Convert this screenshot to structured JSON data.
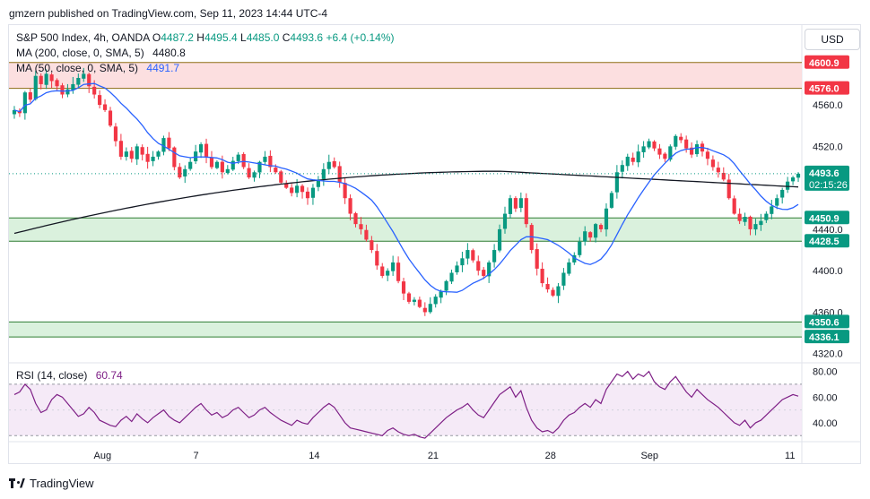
{
  "header": {
    "published": "gmzern published on TradingView.com, Sep 11, 2023 14:44 UTC-4"
  },
  "legend": {
    "title": "S&P 500 Index, 4h, OANDA",
    "open_label": "O",
    "open": "4487.2",
    "high_label": "H",
    "high": "4495.4",
    "low_label": "L",
    "low": "4485.0",
    "close_label": "C",
    "close": "4493.6",
    "change": "+6.4 (+0.14%)",
    "ma200_label": "MA (200, close, 0, SMA, 5)",
    "ma200_value": "4480.8",
    "ma50_label": "MA (50, close, 0, SMA, 5)",
    "ma50_value": "4491.7",
    "rsi_label": "RSI (14, close)",
    "rsi_value": "60.74"
  },
  "currency_button": "USD",
  "footer": {
    "brand": "TradingView"
  },
  "colors": {
    "up": "#089981",
    "down": "#f23645",
    "ma200": "#131722",
    "ma50": "#2962ff",
    "rsi": "#7e1f86",
    "resistance_zone": "#fbd9da",
    "support_zone": "#d4efd7"
  },
  "chart_data": [
    {
      "type": "candlestick",
      "title": "S&P 500 Index, 4h, OANDA",
      "ylim": [
        4312,
        4637
      ],
      "y_ticks": [
        "4560.0",
        "4520.0",
        "4440.0",
        "4400.0",
        "4360.0",
        "4320.0"
      ],
      "x_ticks": [
        "Aug",
        "7",
        "14",
        "21",
        "28",
        "Sep",
        "11"
      ],
      "price_labels": [
        {
          "text": "4600.9",
          "value": 4600.9,
          "color": "#f23645"
        },
        {
          "text": "4576.0",
          "value": 4576.0,
          "color": "#f23645"
        },
        {
          "text": "4493.6",
          "value": 4493.6,
          "color": "#089981",
          "countdown": "02:15:26"
        },
        {
          "text": "4450.9",
          "value": 4450.9,
          "color": "#089981"
        },
        {
          "text": "4428.5",
          "value": 4428.5,
          "color": "#089981"
        },
        {
          "text": "4350.6",
          "value": 4350.6,
          "color": "#089981"
        },
        {
          "text": "4336.1",
          "value": 4336.1,
          "color": "#089981"
        }
      ],
      "zones": [
        {
          "from": 4576.0,
          "to": 4600.9,
          "kind": "resistance"
        },
        {
          "from": 4428.5,
          "to": 4450.9,
          "kind": "support"
        },
        {
          "from": 4336.1,
          "to": 4350.6,
          "kind": "support"
        }
      ],
      "last_price": 4493.6,
      "close_path": [
        4555,
        4552,
        4572,
        4565,
        4588,
        4580,
        4590,
        4583,
        4578,
        4570,
        4575,
        4580,
        4586,
        4590,
        4578,
        4570,
        4560,
        4555,
        4540,
        4525,
        4510,
        4515,
        4508,
        4520,
        4512,
        4505,
        4510,
        4515,
        4528,
        4518,
        4500,
        4490,
        4498,
        4505,
        4515,
        4522,
        4510,
        4500,
        4505,
        4495,
        4498,
        4506,
        4512,
        4500,
        4490,
        4495,
        4505,
        4510,
        4500,
        4495,
        4485,
        4480,
        4475,
        4482,
        4476,
        4470,
        4480,
        4488,
        4498,
        4505,
        4500,
        4485,
        4470,
        4455,
        4445,
        4440,
        4430,
        4420,
        4405,
        4395,
        4400,
        4408,
        4390,
        4378,
        4370,
        4372,
        4365,
        4360,
        4368,
        4375,
        4380,
        4390,
        4398,
        4405,
        4412,
        4420,
        4410,
        4400,
        4395,
        4408,
        4420,
        4440,
        4455,
        4470,
        4460,
        4470,
        4445,
        4420,
        4402,
        4388,
        4382,
        4376,
        4385,
        4398,
        4408,
        4415,
        4428,
        4438,
        4432,
        4445,
        4440,
        4460,
        4475,
        4495,
        4502,
        4510,
        4505,
        4515,
        4520,
        4525,
        4518,
        4512,
        4508,
        4520,
        4530,
        4526,
        4518,
        4512,
        4522,
        4515,
        4508,
        4500,
        4495,
        4488,
        4470,
        4455,
        4448,
        4452,
        4440,
        4445,
        4448,
        4455,
        4462,
        4470,
        4478,
        4486,
        4490,
        4493.6
      ]
    },
    {
      "type": "line",
      "title": "RSI (14, close)",
      "ylim": [
        26,
        86
      ],
      "y_ticks": [
        "80.00",
        "60.00",
        "40.00"
      ],
      "band": [
        30,
        70
      ],
      "values": [
        62,
        64,
        70,
        66,
        55,
        48,
        50,
        58,
        62,
        60,
        55,
        50,
        45,
        47,
        52,
        48,
        42,
        40,
        38,
        37,
        42,
        45,
        41,
        47,
        43,
        40,
        44,
        47,
        50,
        45,
        42,
        40,
        44,
        48,
        52,
        55,
        50,
        46,
        48,
        44,
        46,
        50,
        52,
        48,
        44,
        46,
        50,
        52,
        48,
        45,
        42,
        40,
        38,
        42,
        40,
        39,
        44,
        48,
        52,
        55,
        52,
        46,
        40,
        36,
        35,
        34,
        33,
        32,
        31,
        30,
        34,
        36,
        33,
        31,
        30,
        31,
        29,
        28,
        32,
        36,
        40,
        44,
        47,
        50,
        52,
        55,
        50,
        46,
        44,
        50,
        56,
        62,
        65,
        68,
        60,
        65,
        52,
        42,
        36,
        33,
        34,
        32,
        36,
        42,
        46,
        48,
        52,
        55,
        52,
        58,
        55,
        66,
        72,
        78,
        76,
        80,
        74,
        78,
        76,
        80,
        72,
        68,
        66,
        72,
        76,
        70,
        64,
        60,
        66,
        62,
        58,
        55,
        52,
        48,
        44,
        40,
        38,
        42,
        36,
        40,
        42,
        46,
        50,
        54,
        58,
        60,
        62,
        60.74
      ]
    }
  ]
}
